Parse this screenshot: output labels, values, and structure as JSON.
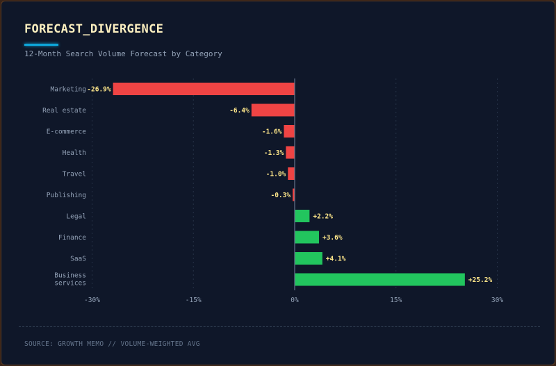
{
  "header": {
    "title": "FORECAST_DIVERGENCE",
    "subtitle": "12-Month Search Volume Forecast by Category"
  },
  "footer": {
    "source": "SOURCE: GROWTH MEMO // VOLUME-WEIGHTED AVG"
  },
  "colors": {
    "negative": "#ef4444",
    "positive": "#22c55e",
    "value_label": "#fde68a",
    "accent": "#0ea5d8"
  },
  "chart_data": {
    "type": "bar",
    "orientation": "horizontal",
    "title": "FORECAST_DIVERGENCE",
    "subtitle": "12-Month Search Volume Forecast by Category",
    "categories": [
      "Marketing",
      "Real estate",
      "E-commerce",
      "Health",
      "Travel",
      "Publishing",
      "Legal",
      "Finance",
      "SaaS",
      "Business services"
    ],
    "values": [
      -26.9,
      -6.4,
      -1.6,
      -1.3,
      -1.0,
      -0.3,
      2.2,
      3.6,
      4.1,
      25.2
    ],
    "data_labels": [
      "-26.9%",
      "-6.4%",
      "-1.6%",
      "-1.3%",
      "-1.0%",
      "-0.3%",
      "+2.2%",
      "+3.6%",
      "+4.1%",
      "+25.2%"
    ],
    "xlim": [
      -30,
      30
    ],
    "xticks": [
      -30,
      -15,
      0,
      15,
      30
    ],
    "xtick_labels": [
      "-30%",
      "-15%",
      "0%",
      "15%",
      "30%"
    ],
    "xlabel": "",
    "ylabel": "",
    "grid": "vertical dashed"
  }
}
